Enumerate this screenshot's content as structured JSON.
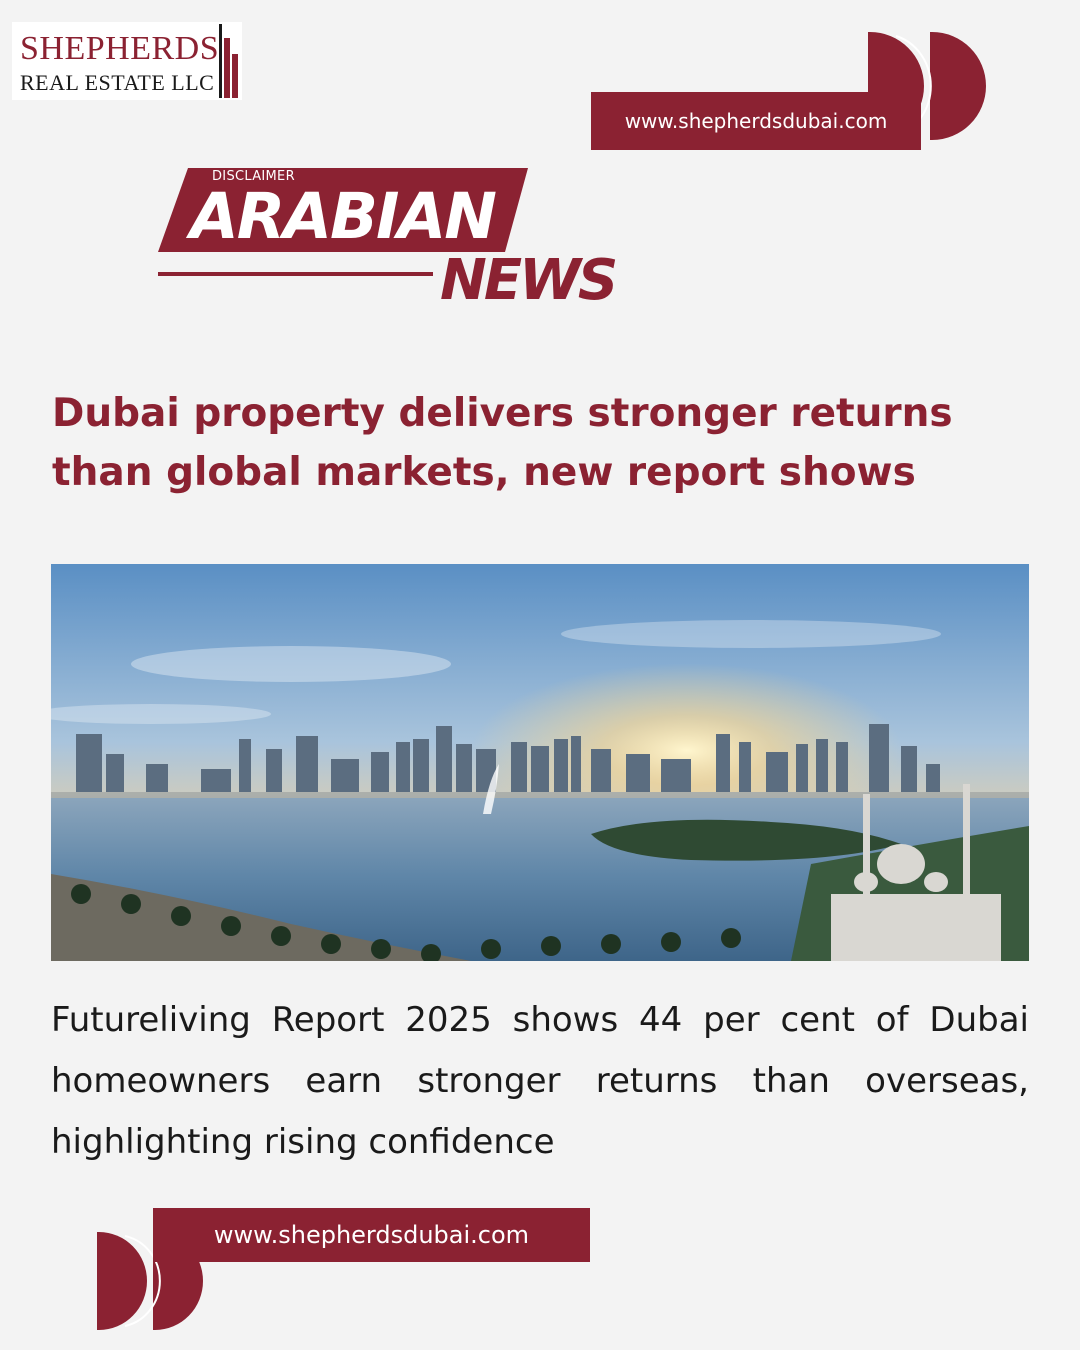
{
  "logo": {
    "line1": "SHEPHERDS",
    "line2": "REAL ESTATE LLC"
  },
  "header": {
    "url": "www.shepherdsdubai.com"
  },
  "masthead": {
    "disclaimer": "DISCLAIMER",
    "title": "ARABIAN",
    "subtitle": "NEWS"
  },
  "article": {
    "headline": "Dubai property delivers stronger returns than global markets, new report shows",
    "body": "Futureliving Report 2025 shows 44 per cent of Dubai homeowners earn stronger returns than overseas, highlighting rising confidence"
  },
  "footer": {
    "url": "www.shepherdsdubai.com"
  },
  "colors": {
    "brand": "#8b2232",
    "background": "#f3f3f3",
    "text": "#1a1a1a"
  },
  "icons": {
    "top_decoration": "double-half-circle-icon",
    "bottom_decoration": "double-half-circle-icon"
  }
}
